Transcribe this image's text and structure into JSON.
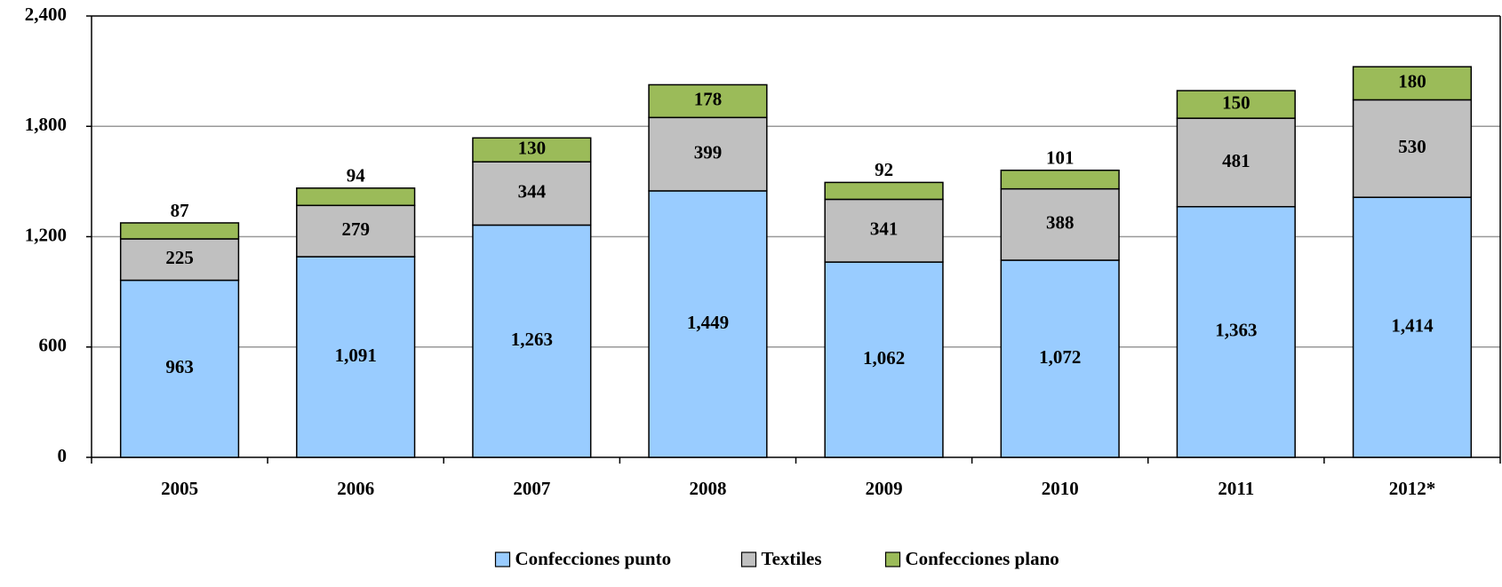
{
  "chart_data": {
    "type": "stacked_bar",
    "categories": [
      "2005",
      "2006",
      "2007",
      "2008",
      "2009",
      "2010",
      "2011",
      "2012*"
    ],
    "series": [
      {
        "name": "Confecciones punto",
        "color": "#99ccff",
        "values": [
          963,
          1091,
          1263,
          1449,
          1062,
          1072,
          1363,
          1414
        ],
        "value_labels": [
          "963",
          "1,091",
          "1,263",
          "1,449",
          "1,062",
          "1,072",
          "1,363",
          "1,414"
        ]
      },
      {
        "name": "Textiles",
        "color": "#c0c0c0",
        "values": [
          225,
          279,
          344,
          399,
          341,
          388,
          481,
          530
        ]
      },
      {
        "name": "Confecciones plano",
        "color": "#9bbb59",
        "values": [
          87,
          94,
          130,
          178,
          92,
          101,
          150,
          180
        ]
      }
    ],
    "ylim": [
      0,
      2400
    ],
    "yticks": [
      0,
      {
        "value": 600,
        "label": "600"
      },
      {
        "value": 1200,
        "label": "1,200"
      },
      {
        "value": 1800,
        "label": "1,800"
      },
      {
        "value": 2400,
        "label": "2,400"
      }
    ],
    "grid": true,
    "legend": "bottom"
  }
}
